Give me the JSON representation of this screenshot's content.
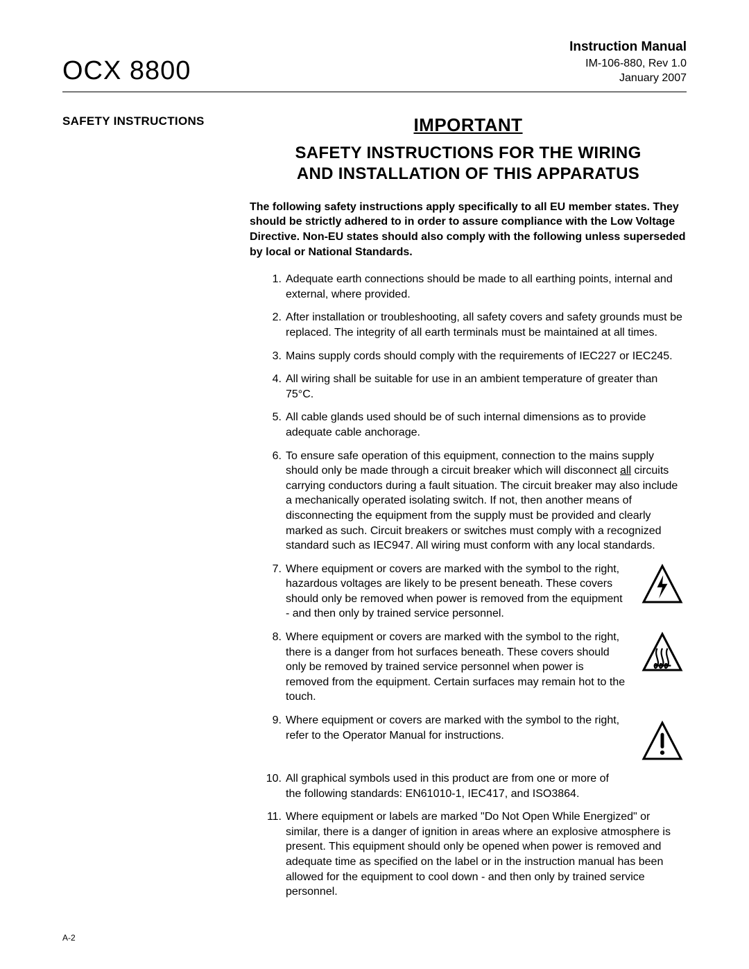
{
  "header": {
    "product": "OCX 8800",
    "manual_label": "Instruction Manual",
    "doc_rev": "IM-106-880, Rev 1.0",
    "doc_date": "January 2007"
  },
  "sidebar": {
    "title": "SAFETY INSTRUCTIONS"
  },
  "content": {
    "important": "IMPORTANT",
    "heading_line1": "SAFETY INSTRUCTIONS FOR THE WIRING",
    "heading_line2": "AND INSTALLATION OF THIS APPARATUS",
    "lead": "The following safety instructions apply specifically to all EU member states. They should be strictly adhered to in order to assure compliance with the Low Voltage Directive. Non-EU states should also comply with the following unless superseded by local or National Standards.",
    "items": [
      {
        "text": "Adequate earth connections should be made to all earthing points, internal and external, where provided."
      },
      {
        "text": "After installation or troubleshooting, all safety covers and safety grounds must be replaced. The integrity of all earth terminals must be maintained at all times."
      },
      {
        "text": "Mains supply cords should comply with the requirements of IEC227 or IEC245."
      },
      {
        "text": "All wiring shall be suitable for use in an ambient temperature of greater than 75°C."
      },
      {
        "text": "All cable glands used should be of such internal dimensions as to provide adequate cable anchorage."
      },
      {
        "text_pre": "To ensure safe operation of this equipment, connection to the mains supply should only be made through a circuit breaker which will disconnect ",
        "text_underline": "all",
        "text_post": " circuits carrying conductors during a fault situation. The circuit breaker may also include a mechanically operated isolating switch. If not, then another means of disconnecting the equipment from the supply must be provided and clearly marked as such. Circuit breakers or switches must comply with a recognized standard such as IEC947. All wiring must conform with any local standards."
      },
      {
        "text": "Where equipment or covers are marked with the symbol to the right, hazardous voltages are likely to be present beneath. These covers should only be removed when power is removed from the equipment - and then only by trained service personnel.",
        "icon": "voltage"
      },
      {
        "text": "Where equipment or covers are marked with the symbol to the right, there is a danger from hot surfaces beneath. These covers should only be removed by trained service personnel when power is removed from the equipment. Certain surfaces may remain hot to the touch.",
        "icon": "hot"
      },
      {
        "text": "Where equipment or covers are marked with the symbol to the right, refer to the Operator Manual for instructions.",
        "icon": "caution"
      },
      {
        "text": "All graphical symbols used in this product are from one or more of the following standards: EN61010-1, IEC417, and ISO3864.",
        "icon_placeholder": true
      },
      {
        "text": "Where equipment or labels are marked \"Do Not Open While Energized\" or similar, there is a danger of ignition in areas where an explosive atmosphere is present. This equipment should only be opened when power is removed and adequate time as specified on the label or in the instruction manual has been allowed for the equipment to cool down - and then only by trained service personnel."
      }
    ]
  },
  "icons": {
    "stroke": "#000000",
    "stroke_width": 3,
    "size": 62
  },
  "page_number": "A-2"
}
